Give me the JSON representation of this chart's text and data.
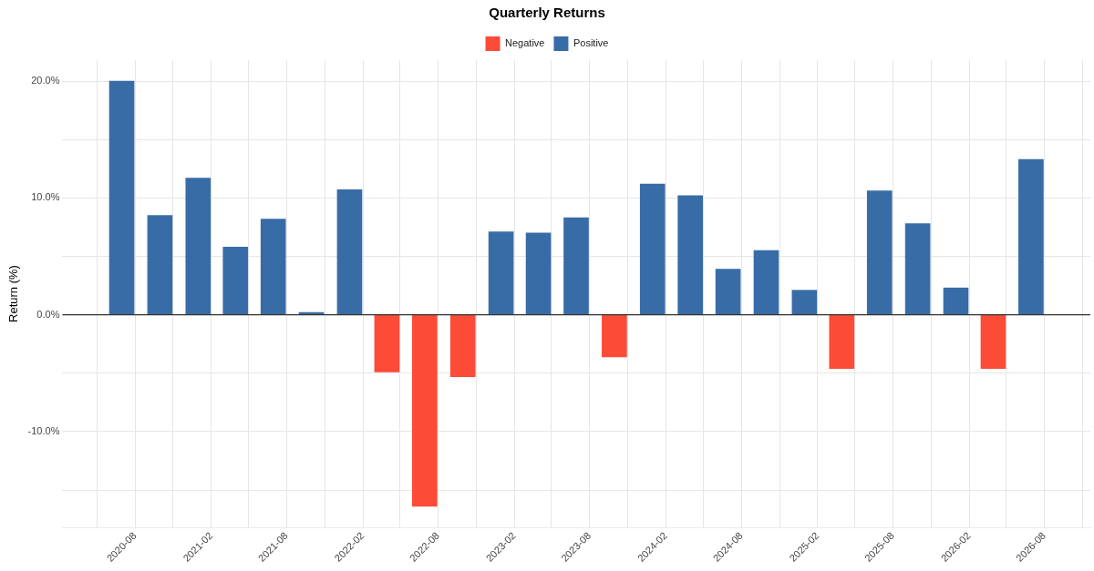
{
  "chart_data": {
    "type": "bar",
    "title": "Quarterly Returns",
    "ylabel": "Return (%)",
    "x": [
      "2020-06-30",
      "2020-09-30",
      "2020-12-31",
      "2021-03-31",
      "2021-06-30",
      "2021-09-30",
      "2021-12-31",
      "2022-03-31",
      "2022-06-30",
      "2022-09-30",
      "2022-12-31",
      "2023-03-31",
      "2023-06-30",
      "2023-09-30",
      "2023-12-31",
      "2024-03-31",
      "2024-06-30",
      "2024-09-30",
      "2024-12-31",
      "2025-03-31",
      "2025-06-30",
      "2025-09-30",
      "2025-12-31",
      "2026-03-31",
      "2026-06-30"
    ],
    "series": [
      {
        "name": "Negative",
        "color": "#fc4b37",
        "values": [
          null,
          null,
          null,
          null,
          null,
          null,
          null,
          -4.9,
          -16.4,
          -5.3,
          null,
          null,
          null,
          -3.6,
          null,
          null,
          null,
          null,
          null,
          -4.6,
          null,
          null,
          null,
          -4.6,
          null
        ]
      },
      {
        "name": "Positive",
        "color": "#386ca6",
        "values": [
          20.0,
          8.5,
          11.7,
          5.8,
          8.2,
          0.2,
          10.7,
          null,
          null,
          null,
          7.1,
          7.0,
          8.3,
          null,
          11.2,
          10.2,
          3.9,
          5.5,
          2.1,
          null,
          10.6,
          7.8,
          2.3,
          null,
          13.3
        ]
      }
    ],
    "xlim": [
      "2020-02-08",
      "2026-11-20"
    ],
    "xticks": [
      {
        "value": "2020-05",
        "label": null
      },
      "2020-08",
      {
        "value": "2020-11",
        "label": null
      },
      "2021-02",
      {
        "value": "2021-05",
        "label": null
      },
      "2021-08",
      {
        "value": "2021-11",
        "label": null
      },
      "2022-02",
      {
        "value": "2022-05",
        "label": null
      },
      "2022-08",
      {
        "value": "2022-11",
        "label": null
      },
      "2023-02",
      {
        "value": "2023-05",
        "label": null
      },
      "2023-08",
      {
        "value": "2023-11",
        "label": null
      },
      "2024-02",
      {
        "value": "2024-05",
        "label": null
      },
      "2024-08",
      {
        "value": "2024-11",
        "label": null
      },
      "2025-02",
      {
        "value": "2025-05",
        "label": null
      },
      "2025-08",
      {
        "value": "2025-11",
        "label": null
      },
      "2026-02",
      {
        "value": "2026-05",
        "label": null
      },
      "2026-08",
      {
        "value": "2026-11",
        "label": null
      }
    ],
    "ylim": [
      -18.2,
      21.8
    ],
    "yticks": [
      {
        "value": -15,
        "label": null
      },
      {
        "value": -10,
        "label": "-10.0%"
      },
      {
        "value": -5,
        "label": null
      },
      {
        "value": 0,
        "label": "0.0%"
      },
      {
        "value": 5,
        "label": null
      },
      {
        "value": 10,
        "label": "10.0%"
      },
      {
        "value": 15,
        "label": null
      },
      {
        "value": 20,
        "label": "20.0%"
      }
    ],
    "ref_lines": [
      {
        "axis": "y",
        "value": 0,
        "color": "#333333"
      }
    ],
    "grid": true,
    "legend": "top"
  }
}
